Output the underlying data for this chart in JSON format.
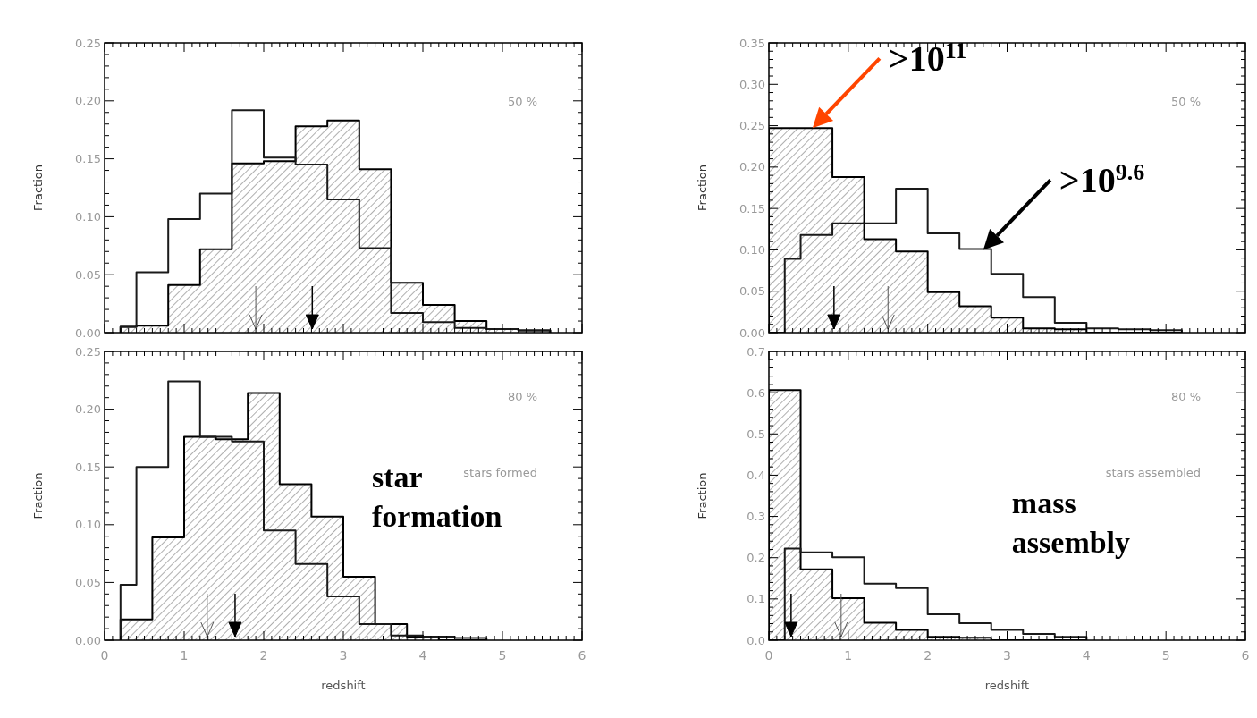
{
  "chart_data": [
    {
      "type": "histogram",
      "ylabel": "Fraction",
      "xlim": [
        0,
        6
      ],
      "xticks": [
        0,
        1,
        2,
        3,
        4,
        5,
        6
      ],
      "ylim": [
        0,
        0.25
      ],
      "yticks": [
        {
          "value": 0,
          "label": "0.00"
        },
        {
          "value": 0.05,
          "label": "0.05"
        },
        {
          "value": 0.1,
          "label": "0.10"
        },
        {
          "value": 0.15,
          "label": "0.15"
        },
        {
          "value": 0.2,
          "label": "0.20"
        },
        {
          "value": 0.25,
          "label": "0.25"
        }
      ],
      "tick_labels": "y",
      "grid": false,
      "bins": [
        0.2,
        0.4,
        0.6,
        0.8,
        1.0,
        1.2,
        1.4,
        1.6,
        1.8,
        2.0,
        2.2,
        2.4,
        2.6,
        2.8,
        3.0,
        3.2,
        3.4,
        3.6,
        3.8,
        4.0,
        4.2,
        4.4,
        4.6,
        4.8,
        5.0,
        5.2,
        5.4,
        5.6
      ],
      "series": [
        {
          "color": "#000000",
          "values": [
            0.005,
            0.006,
            0.006,
            0.041,
            0.041,
            0.072,
            0.072,
            0.146,
            0.146,
            0.148,
            0.148,
            0.178,
            0.178,
            0.183,
            0.183,
            0.141,
            0.141,
            0.043,
            0.043,
            0.024,
            0.024,
            0.01,
            0.01,
            0.003,
            0.003,
            0.002,
            0.002
          ]
        },
        {
          "color": "#1a1a1a",
          "values": [
            0.005,
            0.052,
            0.052,
            0.098,
            0.098,
            0.12,
            0.12,
            0.192,
            0.192,
            0.151,
            0.151,
            0.145,
            0.145,
            0.115,
            0.115,
            0.073,
            0.073,
            0.017,
            0.017,
            0.009,
            0.009,
            0.004,
            0.004,
            0.003,
            0.003,
            0.002,
            0.002
          ]
        }
      ],
      "ref_lines": [
        {
          "axis": "x",
          "value": 2.61,
          "color": "#000000"
        },
        {
          "axis": "x",
          "value": 1.9,
          "color": "#555555"
        }
      ],
      "annotations": [
        "50 %"
      ]
    },
    {
      "type": "histogram",
      "ylabel": "Fraction",
      "xlim": [
        0,
        6
      ],
      "xticks": [
        0,
        1,
        2,
        3,
        4,
        5,
        6
      ],
      "ylim": [
        0,
        0.35
      ],
      "yticks": [
        {
          "value": 0,
          "label": "0.00"
        },
        {
          "value": 0.05,
          "label": "0.05"
        },
        {
          "value": 0.1,
          "label": "0.10"
        },
        {
          "value": 0.15,
          "label": "0.15"
        },
        {
          "value": 0.2,
          "label": "0.20"
        },
        {
          "value": 0.25,
          "label": "0.25"
        },
        {
          "value": 0.3,
          "label": "0.30"
        },
        {
          "value": 0.35,
          "label": "0.35"
        }
      ],
      "tick_labels": "y",
      "grid": false,
      "bins": [
        0,
        0.2,
        0.4,
        0.6,
        0.8,
        1.0,
        1.2,
        1.4,
        1.6,
        1.8,
        2.0,
        2.2,
        2.4,
        2.6,
        2.8,
        3.0,
        3.2,
        3.4,
        3.6,
        3.8,
        4.0,
        4.2,
        4.4,
        4.6,
        4.8,
        5.0,
        5.2
      ],
      "series": [
        {
          "color": "#000000",
          "values": [
            0.247,
            0.247,
            0.247,
            0.247,
            0.188,
            0.188,
            0.113,
            0.113,
            0.098,
            0.098,
            0.049,
            0.049,
            0.032,
            0.032,
            0.018,
            0.018,
            0.005,
            0.005,
            0.004,
            0.004,
            0,
            0,
            0,
            0,
            0,
            0
          ]
        },
        {
          "color": "#1a1a1a",
          "values": [
            0,
            0.089,
            0.118,
            0.118,
            0.132,
            0.132,
            0.132,
            0.132,
            0.174,
            0.174,
            0.12,
            0.12,
            0.101,
            0.101,
            0.071,
            0.071,
            0.043,
            0.043,
            0.012,
            0.012,
            0.005,
            0.005,
            0.004,
            0.004,
            0.003,
            0.003
          ]
        }
      ],
      "ref_lines": [
        {
          "axis": "x",
          "value": 0.82,
          "color": "#000000"
        },
        {
          "axis": "x",
          "value": 1.5,
          "color": "#555555"
        }
      ],
      "annotations": [
        "50 %",
        {
          "text": ">10$^{11}$",
          "x": 0.55,
          "y": 0.247
        },
        {
          "text": ">10$^{9.6}$",
          "x": 2.7,
          "y": 0.1
        }
      ]
    },
    {
      "type": "histogram",
      "xlabel": "redshift",
      "ylabel": "Fraction",
      "subtitle": "star formation",
      "xlim": [
        0,
        6
      ],
      "xticks": [
        0,
        1,
        2,
        3,
        4,
        5,
        6
      ],
      "ylim": [
        0,
        0.25
      ],
      "yticks": [
        {
          "value": 0,
          "label": "0.00"
        },
        {
          "value": 0.05,
          "label": "0.05"
        },
        {
          "value": 0.1,
          "label": "0.10"
        },
        {
          "value": 0.15,
          "label": "0.15"
        },
        {
          "value": 0.2,
          "label": "0.20"
        },
        {
          "value": 0.25,
          "label": "0.25"
        }
      ],
      "grid": false,
      "bins": [
        0.2,
        0.4,
        0.6,
        0.8,
        1.0,
        1.2,
        1.4,
        1.6,
        1.8,
        2.0,
        2.2,
        2.4,
        2.6,
        2.8,
        3.0,
        3.2,
        3.4,
        3.6,
        3.8,
        4.0,
        4.2,
        4.4,
        4.6,
        4.8
      ],
      "series": [
        {
          "color": "#000000",
          "values": [
            0.018,
            0.018,
            0.089,
            0.089,
            0.176,
            0.176,
            0.174,
            0.174,
            0.214,
            0.214,
            0.135,
            0.135,
            0.107,
            0.107,
            0.055,
            0.055,
            0.014,
            0.014,
            0.003,
            0.003,
            0,
            0,
            0
          ]
        },
        {
          "color": "#1a1a1a",
          "values": [
            0.048,
            0.15,
            0.15,
            0.224,
            0.224,
            0.176,
            0.176,
            0.172,
            0.172,
            0.095,
            0.095,
            0.066,
            0.066,
            0.038,
            0.038,
            0.014,
            0.014,
            0.004,
            0.004,
            0.003,
            0.003,
            0.002,
            0.002
          ]
        }
      ],
      "ref_lines": [
        {
          "axis": "x",
          "value": 1.64,
          "color": "#000000"
        },
        {
          "axis": "x",
          "value": 1.29,
          "color": "#555555"
        }
      ],
      "annotations": [
        "80 %",
        "stars formed"
      ]
    },
    {
      "type": "histogram",
      "xlabel": "redshift",
      "ylabel": "Fraction",
      "subtitle": "mass assembly",
      "xlim": [
        0,
        6
      ],
      "xticks": [
        0,
        1,
        2,
        3,
        4,
        5,
        6
      ],
      "ylim": [
        0,
        0.7
      ],
      "yticks": [
        {
          "value": 0,
          "label": "0.0"
        },
        {
          "value": 0.1,
          "label": "0.1"
        },
        {
          "value": 0.2,
          "label": "0.2"
        },
        {
          "value": 0.3,
          "label": "0.3"
        },
        {
          "value": 0.4,
          "label": "0.4"
        },
        {
          "value": 0.5,
          "label": "0.5"
        },
        {
          "value": 0.6,
          "label": "0.6"
        },
        {
          "value": 0.7,
          "label": "0.7"
        }
      ],
      "grid": false,
      "bins": [
        0,
        0.2,
        0.4,
        0.6,
        0.8,
        1.0,
        1.2,
        1.4,
        1.6,
        1.8,
        2.0,
        2.2,
        2.4,
        2.6,
        2.8,
        3.0,
        3.2,
        3.4,
        3.6,
        3.8,
        4.0
      ],
      "series": [
        {
          "color": "#000000",
          "values": [
            0.606,
            0.606,
            0.172,
            0.172,
            0.102,
            0.102,
            0.042,
            0.042,
            0.025,
            0.025,
            0.008,
            0.008,
            0.006,
            0.006,
            0,
            0,
            0,
            0,
            0,
            0
          ]
        },
        {
          "color": "#1a1a1a",
          "values": [
            0,
            0.222,
            0.213,
            0.213,
            0.201,
            0.201,
            0.137,
            0.137,
            0.126,
            0.126,
            0.063,
            0.063,
            0.041,
            0.041,
            0.025,
            0.025,
            0.015,
            0.015,
            0.008,
            0.008
          ]
        }
      ],
      "ref_lines": [
        {
          "axis": "x",
          "value": 0.28,
          "color": "#000000"
        },
        {
          "axis": "x",
          "value": 0.91,
          "color": "#555555"
        }
      ],
      "annotations": [
        "80 %",
        "stars assembled"
      ]
    }
  ]
}
